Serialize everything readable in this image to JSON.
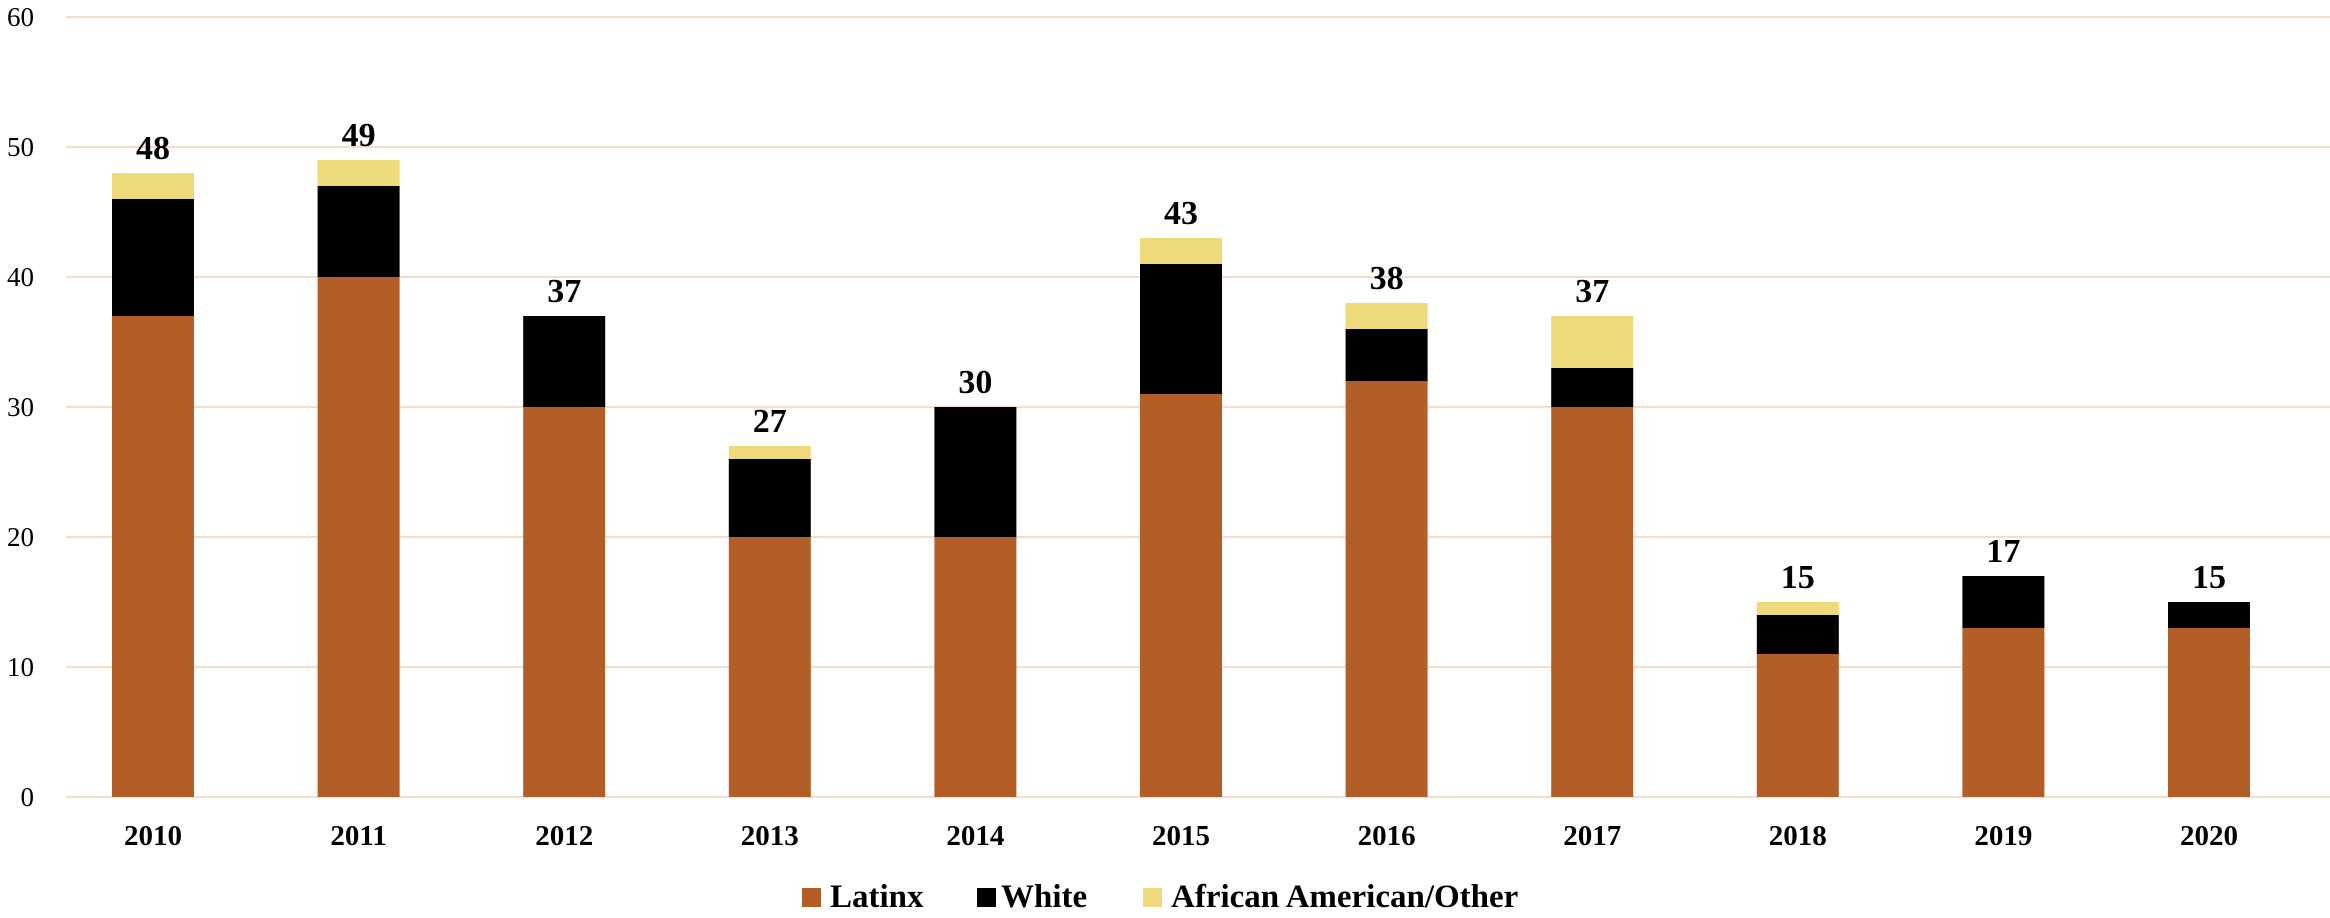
{
  "chart_data": {
    "type": "bar",
    "stacked": true,
    "categories": [
      "2010",
      "2011",
      "2012",
      "2013",
      "2014",
      "2015",
      "2016",
      "2017",
      "2018",
      "2019",
      "2020"
    ],
    "series": [
      {
        "name": "Latinx",
        "color": "#B35E27",
        "values": [
          37,
          40,
          30,
          20,
          20,
          31,
          32,
          30,
          11,
          13,
          13
        ]
      },
      {
        "name": "White",
        "color": "#000000",
        "values": [
          9,
          7,
          7,
          6,
          10,
          10,
          4,
          3,
          3,
          4,
          2
        ]
      },
      {
        "name": "African American/Other",
        "color": "#EFD97D",
        "values": [
          2,
          2,
          0,
          1,
          0,
          2,
          2,
          4,
          1,
          0,
          0
        ]
      }
    ],
    "totals": [
      48,
      49,
      37,
      27,
      30,
      43,
      38,
      37,
      15,
      17,
      15
    ],
    "ylim": [
      0,
      60
    ],
    "yticks": [
      0,
      10,
      20,
      30,
      40,
      50,
      60
    ],
    "grid": true,
    "gridColor": "#F6DCCB",
    "legend": "bottom-center",
    "title": "",
    "xlabel": "",
    "ylabel": ""
  }
}
